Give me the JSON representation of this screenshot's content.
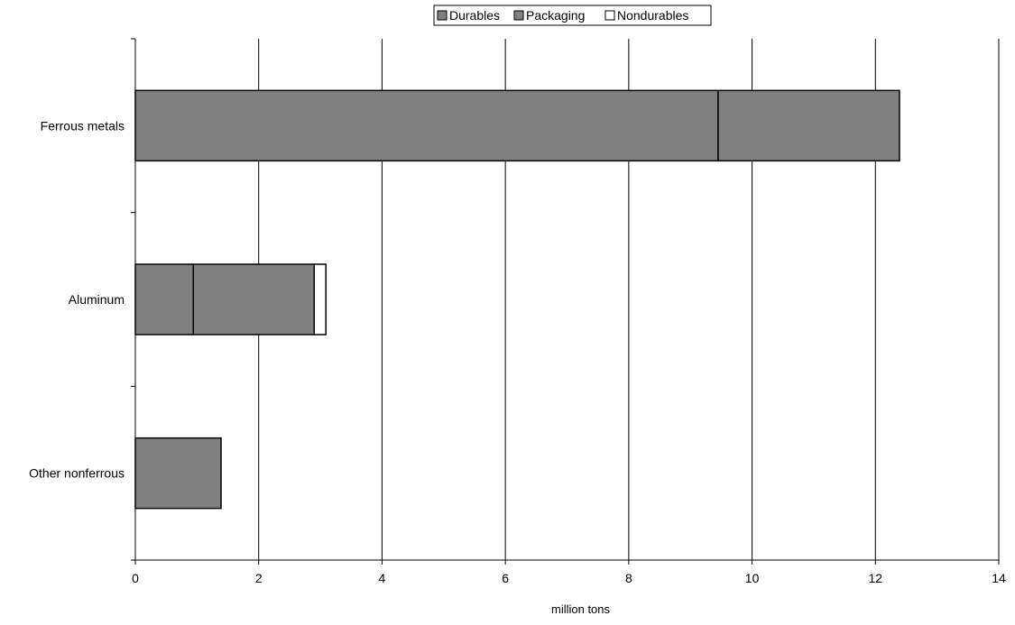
{
  "chart_data": {
    "type": "bar",
    "orientation": "horizontal",
    "stacked": true,
    "title": "",
    "xlabel": "million tons",
    "ylabel": "",
    "xlim": [
      0,
      14
    ],
    "x_ticks": [
      0,
      2,
      4,
      6,
      8,
      10,
      12,
      14
    ],
    "grid": true,
    "legend_position": "top",
    "categories": [
      "Ferrous metals",
      "Aluminum",
      "Other nonferrous"
    ],
    "series": [
      {
        "name": "Durables",
        "values": [
          9.45,
          0.94,
          1.39
        ],
        "color": "#808080"
      },
      {
        "name": "Packaging",
        "values": [
          2.94,
          1.96,
          0
        ],
        "color": "#808080"
      },
      {
        "name": "Nondurables",
        "values": [
          0,
          0.19,
          0
        ],
        "color": "#ffffff"
      }
    ]
  }
}
